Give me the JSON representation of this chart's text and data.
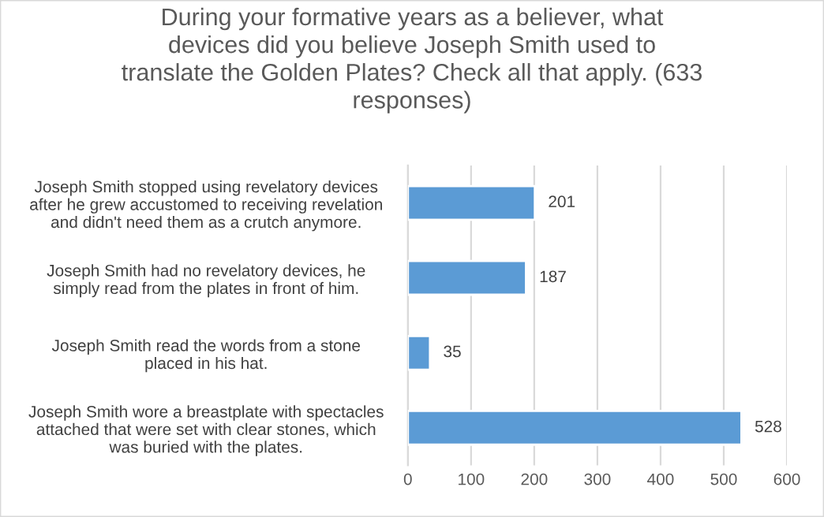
{
  "chart_data": {
    "type": "bar",
    "orientation": "horizontal",
    "title": "During your formative years as a believer, what\ndevices did you believe Joseph Smith used to\ntranslate the Golden Plates? Check all that apply. (633\nresponses)",
    "categories": [
      "Joseph Smith stopped using revelatory devices\nafter he grew accustomed to receiving revelation\nand didn't need them as a crutch anymore.",
      "Joseph Smith had no revelatory devices, he\nsimply read from the plates in front of him.",
      "Joseph Smith read the words from a stone\nplaced in his hat.",
      "Joseph Smith wore a breastplate with spectacles\nattached that were set with clear stones, which\nwas buried with the plates."
    ],
    "values": [
      201,
      187,
      35,
      528
    ],
    "color": "#5b9bd5",
    "xlim": [
      0,
      600
    ],
    "xticks": [
      0,
      100,
      200,
      300,
      400,
      500,
      600
    ],
    "grid": "x",
    "data_labels": true
  }
}
